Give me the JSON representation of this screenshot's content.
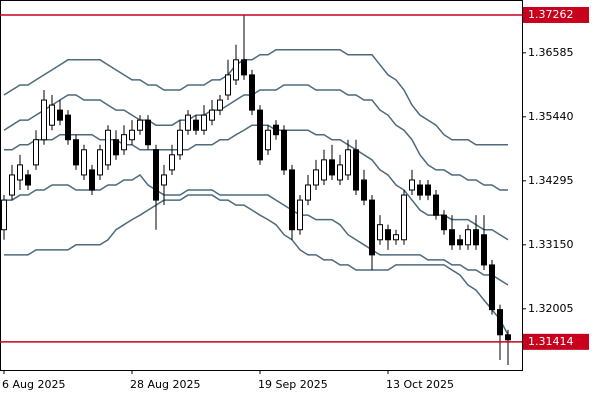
{
  "chart_data": {
    "type": "candlestick",
    "categories": [
      "6 Aug 2025",
      null,
      null,
      null,
      null,
      null,
      null,
      null,
      null,
      null,
      null,
      null,
      null,
      null,
      null,
      null,
      "28 Aug 2025",
      null,
      null,
      null,
      null,
      null,
      null,
      null,
      null,
      null,
      null,
      null,
      null,
      null,
      null,
      null,
      "19 Sep 2025",
      null,
      null,
      null,
      null,
      null,
      null,
      null,
      null,
      null,
      null,
      null,
      null,
      null,
      null,
      null,
      "13 Oct 2025",
      null,
      null,
      null,
      null,
      null,
      null,
      null,
      null,
      null,
      null,
      null,
      null,
      null,
      null,
      null
    ],
    "open": [
      1.3342,
      1.3404,
      1.3431,
      1.344,
      1.3458,
      1.3503,
      1.3529,
      1.3556,
      1.3547,
      1.3503,
      1.344,
      1.3449,
      1.344,
      1.3458,
      1.3503,
      1.3485,
      1.3503,
      1.352,
      1.3538,
      1.3485,
      1.3422,
      1.3449,
      1.3476,
      1.352,
      1.3538,
      1.352,
      1.3538,
      1.3556,
      1.3583,
      1.361,
      1.3646,
      1.3619,
      1.3556,
      1.3485,
      1.3529,
      1.352,
      1.3449,
      1.3342,
      1.3395,
      1.3422,
      1.3431,
      1.3467,
      1.3431,
      1.344,
      1.3485,
      1.3431,
      1.3395,
      1.3324,
      1.3342,
      1.3324,
      1.3324,
      1.3413,
      1.3422,
      1.3422,
      1.3404,
      1.3368,
      1.3342,
      1.3324,
      1.3315,
      1.3342,
      1.3333,
      1.3279,
      1.3199,
      1.3154
    ],
    "high": [
      1.3404,
      1.3458,
      1.3476,
      1.3449,
      1.352,
      1.3592,
      1.3583,
      1.3574,
      1.3556,
      1.3512,
      1.3494,
      1.3458,
      1.3494,
      1.3529,
      1.352,
      1.3529,
      1.3538,
      1.3547,
      1.3547,
      1.3494,
      1.3458,
      1.3494,
      1.3538,
      1.3556,
      1.3547,
      1.3565,
      1.3574,
      1.3583,
      1.3646,
      1.3673,
      1.3726,
      1.3628,
      1.3565,
      1.3529,
      1.3538,
      1.3529,
      1.3458,
      1.3404,
      1.344,
      1.3467,
      1.3485,
      1.3494,
      1.3476,
      1.3503,
      1.3503,
      1.3449,
      1.3404,
      1.3368,
      1.3351,
      1.3342,
      1.3413,
      1.3449,
      1.3431,
      1.3431,
      1.3413,
      1.3377,
      1.3368,
      1.3333,
      1.3351,
      1.3368,
      1.3368,
      1.3288,
      1.3208,
      1.3163
    ],
    "low": [
      1.3324,
      1.3395,
      1.3413,
      1.3413,
      1.3449,
      1.3494,
      1.352,
      1.3529,
      1.3494,
      1.3449,
      1.3431,
      1.3404,
      1.3431,
      1.3449,
      1.3467,
      1.3476,
      1.3494,
      1.3512,
      1.3485,
      1.3342,
      1.3386,
      1.344,
      1.3467,
      1.3512,
      1.3512,
      1.3512,
      1.3529,
      1.3547,
      1.3574,
      1.3601,
      1.361,
      1.3547,
      1.3458,
      1.3476,
      1.3503,
      1.344,
      1.3324,
      1.3333,
      1.3386,
      1.3413,
      1.3422,
      1.3431,
      1.3422,
      1.3431,
      1.3404,
      1.3386,
      1.327,
      1.3315,
      1.3306,
      1.3315,
      1.3315,
      1.3404,
      1.3395,
      1.3395,
      1.336,
      1.3333,
      1.3306,
      1.3306,
      1.3306,
      1.3306,
      1.327,
      1.319,
      1.3109,
      1.31
    ],
    "close": [
      1.3395,
      1.344,
      1.3458,
      1.3422,
      1.3503,
      1.3574,
      1.3565,
      1.3538,
      1.3503,
      1.3458,
      1.3485,
      1.3413,
      1.3485,
      1.352,
      1.3476,
      1.3512,
      1.352,
      1.3538,
      1.3494,
      1.3395,
      1.344,
      1.3476,
      1.352,
      1.3547,
      1.352,
      1.3547,
      1.3556,
      1.3574,
      1.3619,
      1.3646,
      1.3619,
      1.3556,
      1.3467,
      1.352,
      1.3512,
      1.3449,
      1.3342,
      1.3395,
      1.3422,
      1.3449,
      1.3467,
      1.344,
      1.3458,
      1.3485,
      1.3413,
      1.3395,
      1.3297,
      1.3351,
      1.3324,
      1.3333,
      1.3404,
      1.3431,
      1.3404,
      1.3404,
      1.3368,
      1.3342,
      1.3315,
      1.3315,
      1.3342,
      1.3315,
      1.3279,
      1.3199,
      1.3154,
      1.3145
    ],
    "bull_color": "#ffffff",
    "bear_color": "#000000",
    "band_color": "#4d6a7d",
    "bands": [
      {
        "values": [
          1.3583,
          1.3592,
          1.3601,
          1.3601,
          1.361,
          1.3619,
          1.3628,
          1.3637,
          1.3646,
          1.3646,
          1.3646,
          1.3646,
          1.3646,
          1.3637,
          1.3628,
          1.3619,
          1.361,
          1.361,
          1.3601,
          1.3601,
          1.3592,
          1.3592,
          1.3592,
          1.3601,
          1.3601,
          1.3601,
          1.361,
          1.361,
          1.3619,
          1.3637,
          1.3646,
          1.3646,
          1.3655,
          1.3655,
          1.3664,
          1.3664,
          1.3664,
          1.3664,
          1.3664,
          1.3664,
          1.3664,
          1.3664,
          1.3664,
          1.3655,
          1.3655,
          1.3655,
          1.3655,
          1.3637,
          1.3619,
          1.361,
          1.3592,
          1.3565,
          1.3547,
          1.3538,
          1.3529,
          1.3512,
          1.3503,
          1.3503,
          1.3503,
          1.3494,
          1.3494,
          1.3494,
          1.3494,
          1.3494
        ]
      },
      {
        "values": [
          1.352,
          1.3529,
          1.3538,
          1.3538,
          1.3547,
          1.3556,
          1.3565,
          1.3574,
          1.3583,
          1.3583,
          1.3574,
          1.3574,
          1.3574,
          1.3565,
          1.3556,
          1.3556,
          1.3547,
          1.3538,
          1.3538,
          1.3529,
          1.3529,
          1.3529,
          1.3538,
          1.3538,
          1.3547,
          1.3547,
          1.3556,
          1.3556,
          1.3565,
          1.3574,
          1.3583,
          1.3583,
          1.3592,
          1.3592,
          1.3592,
          1.3601,
          1.3601,
          1.3601,
          1.3601,
          1.3592,
          1.3592,
          1.3592,
          1.3592,
          1.3583,
          1.3583,
          1.3574,
          1.3574,
          1.3556,
          1.3547,
          1.3529,
          1.352,
          1.3503,
          1.3476,
          1.3458,
          1.3449,
          1.3449,
          1.344,
          1.344,
          1.3431,
          1.3431,
          1.3422,
          1.3422,
          1.3413,
          1.3413
        ]
      },
      {
        "values": [
          1.3485,
          1.3485,
          1.3494,
          1.3494,
          1.3503,
          1.3503,
          1.3503,
          1.3512,
          1.3512,
          1.3512,
          1.3512,
          1.3512,
          1.3503,
          1.3503,
          1.3503,
          1.3494,
          1.3494,
          1.3485,
          1.3485,
          1.3485,
          1.3485,
          1.3485,
          1.3485,
          1.3485,
          1.3494,
          1.3494,
          1.3494,
          1.3503,
          1.3503,
          1.3512,
          1.352,
          1.3529,
          1.3529,
          1.3529,
          1.352,
          1.352,
          1.352,
          1.352,
          1.352,
          1.3512,
          1.3512,
          1.3503,
          1.3503,
          1.3494,
          1.3485,
          1.3476,
          1.3467,
          1.3449,
          1.344,
          1.3422,
          1.3413,
          1.3395,
          1.3377,
          1.3368,
          1.3368,
          1.3368,
          1.336,
          1.336,
          1.336,
          1.3351,
          1.3342,
          1.3342,
          1.3333,
          1.3324
        ]
      },
      {
        "values": [
          1.3395,
          1.3395,
          1.3404,
          1.3404,
          1.3413,
          1.3413,
          1.3422,
          1.3422,
          1.3422,
          1.3413,
          1.3413,
          1.3413,
          1.3413,
          1.3422,
          1.3422,
          1.3431,
          1.3431,
          1.344,
          1.3422,
          1.3413,
          1.3404,
          1.3404,
          1.3404,
          1.3413,
          1.3413,
          1.3413,
          1.3413,
          1.3404,
          1.3404,
          1.3404,
          1.3404,
          1.3404,
          1.3404,
          1.3404,
          1.3395,
          1.3386,
          1.3377,
          1.3368,
          1.3368,
          1.336,
          1.336,
          1.336,
          1.3351,
          1.3333,
          1.3324,
          1.3315,
          1.3306,
          1.3297,
          1.3297,
          1.3297,
          1.3297,
          1.3297,
          1.3297,
          1.3288,
          1.3288,
          1.3288,
          1.3279,
          1.3279,
          1.327,
          1.327,
          1.3261,
          1.3261,
          1.3252,
          1.3243
        ]
      },
      {
        "values": [
          1.3297,
          1.3297,
          1.3297,
          1.3297,
          1.3306,
          1.3306,
          1.3306,
          1.3306,
          1.3306,
          1.3315,
          1.3315,
          1.3315,
          1.3315,
          1.3324,
          1.3342,
          1.3351,
          1.336,
          1.3368,
          1.3377,
          1.3386,
          1.3395,
          1.3395,
          1.3395,
          1.3404,
          1.3404,
          1.3404,
          1.3404,
          1.3395,
          1.3395,
          1.3386,
          1.3386,
          1.3377,
          1.3368,
          1.336,
          1.3351,
          1.3333,
          1.3324,
          1.3306,
          1.3297,
          1.3297,
          1.3288,
          1.3288,
          1.3279,
          1.3279,
          1.327,
          1.327,
          1.327,
          1.327,
          1.327,
          1.3279,
          1.3279,
          1.3279,
          1.3279,
          1.3279,
          1.3279,
          1.3279,
          1.327,
          1.3261,
          1.3243,
          1.3234,
          1.3216,
          1.3199,
          1.3181,
          1.3154
        ]
      }
    ],
    "hlines": [
      1.37262,
      1.31414
    ],
    "hline_color": "#c8001e",
    "ylim": [
      1.3091,
      1.3753
    ],
    "yticks": [
      1.32005,
      {
        "value": 1.3315,
        "label": "1.33150"
      },
      1.34295,
      {
        "value": 1.3544,
        "label": "1.35440"
      },
      1.36585
    ]
  }
}
